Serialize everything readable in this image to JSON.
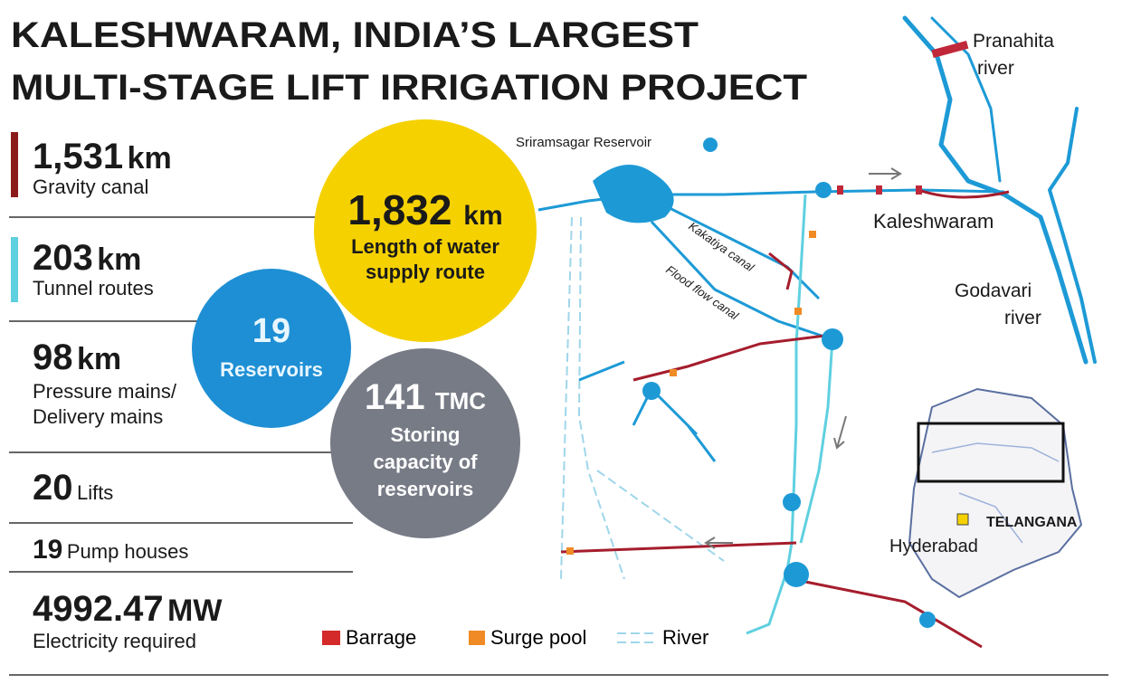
{
  "header": {
    "title_lines": [
      "KALESHWARAM, INDIA’S LARGEST",
      "MULTI-STAGE LIFT IRRIGATION PROJECT"
    ]
  },
  "stats": [
    {
      "value": "1,531",
      "unit": "km",
      "label_lines": [
        "Gravity canal"
      ]
    },
    {
      "value": "203",
      "unit": "km",
      "label_lines": [
        "Tunnel routes"
      ]
    },
    {
      "value": "98",
      "unit": "km",
      "label_lines": [
        "Pressure mains/",
        "Delivery mains"
      ]
    },
    {
      "value": "20",
      "label_lines": [
        "Lifts"
      ]
    },
    {
      "value": "19",
      "label_lines": [
        "Pump houses"
      ]
    },
    {
      "value": "4992.47",
      "unit": "MW",
      "label_lines": [
        "Electricity required"
      ]
    }
  ],
  "highlights": [
    {
      "value": "1,832",
      "unit": "km",
      "label_lines": [
        "Length of water",
        "supply route"
      ]
    },
    {
      "value": "19",
      "label_lines": [
        "Reservoirs"
      ]
    },
    {
      "value": "141",
      "unit": "TMC",
      "label_lines": [
        "Storing",
        "capacity of",
        "reservoirs"
      ]
    }
  ],
  "map_labels": {
    "reservoir": "Sriramsagar Reservoir",
    "pranahita": [
      "Pranahita",
      "river"
    ],
    "kaleshwaram": "Kaleshwaram",
    "godavari": [
      "Godavari",
      "river"
    ],
    "kakatiya": "Kakatiya canal",
    "flood_flow": "Flood flow canal",
    "state": "TELANGANA",
    "city": "Hyderabad"
  },
  "legend": [
    "Barrage",
    "Surge pool",
    "River"
  ]
}
